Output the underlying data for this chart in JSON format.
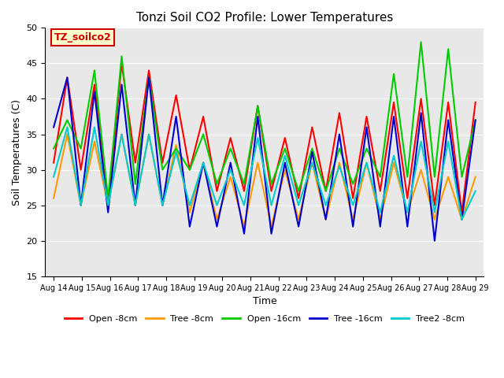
{
  "title": "Tonzi Soil CO2 Profile: Lower Temperatures",
  "xlabel": "Time",
  "ylabel": "Soil Temperatures (C)",
  "ylim": [
    15,
    50
  ],
  "yticks": [
    15,
    20,
    25,
    30,
    35,
    40,
    45,
    50
  ],
  "x_labels": [
    "Aug 14",
    "Aug 15",
    "Aug 16",
    "Aug 17",
    "Aug 18",
    "Aug 19",
    "Aug 20",
    "Aug 21",
    "Aug 22",
    "Aug 23",
    "Aug 24",
    "Aug 25",
    "Aug 26",
    "Aug 27",
    "Aug 28",
    "Aug 29"
  ],
  "background_color": "#e8e8e8",
  "plot_background": "#e8e8e8",
  "legend_label": "TZ_soilco2",
  "series": {
    "Open -8cm": {
      "color": "#ff0000",
      "values": [
        31,
        43,
        30,
        42,
        25,
        45,
        31,
        44,
        31,
        40.5,
        30,
        37.5,
        27,
        34.5,
        27,
        39,
        27,
        34.5,
        26,
        36,
        27,
        38,
        26,
        37.5,
        27,
        39.5,
        26,
        40,
        25,
        39.5,
        24,
        39.5
      ]
    },
    "Tree -8cm": {
      "color": "#ff9900",
      "values": [
        26,
        35,
        25,
        34,
        25,
        35,
        25,
        35,
        25,
        33.5,
        24,
        31,
        23,
        29,
        22,
        31,
        22,
        30,
        23,
        31,
        23,
        31,
        23,
        31,
        23,
        31,
        24,
        30,
        23,
        29,
        23,
        29
      ]
    },
    "Open -16cm": {
      "color": "#00cc00",
      "values": [
        33,
        37,
        33,
        44,
        26,
        46,
        28,
        43,
        30,
        33,
        30,
        35,
        28,
        33,
        28,
        39,
        28,
        33,
        27,
        33,
        27,
        33,
        28,
        33,
        29,
        43.5,
        29,
        48,
        29,
        47,
        29,
        37
      ]
    },
    "Tree -16cm": {
      "color": "#0000cc",
      "values": [
        36,
        43,
        25,
        41,
        24,
        42,
        25,
        43,
        25,
        37.5,
        22,
        31,
        22,
        31,
        21,
        37.5,
        21,
        31,
        22,
        32.5,
        23,
        35,
        22,
        36,
        22,
        37.5,
        22,
        38,
        20,
        37,
        23,
        37
      ]
    },
    "Tree2 -8cm": {
      "color": "#00cccc",
      "values": [
        29,
        36,
        25,
        36,
        25,
        35,
        25,
        35,
        25,
        32.5,
        25,
        31,
        25,
        30,
        25,
        34.5,
        25,
        32,
        25,
        31,
        25,
        30.5,
        25,
        31,
        24,
        32,
        24,
        34,
        24,
        34,
        23,
        27
      ]
    }
  },
  "annotation_box": {
    "text": "TZ_soilco2",
    "facecolor": "#ffffcc",
    "edgecolor": "#cc0000",
    "textcolor": "#cc0000"
  }
}
